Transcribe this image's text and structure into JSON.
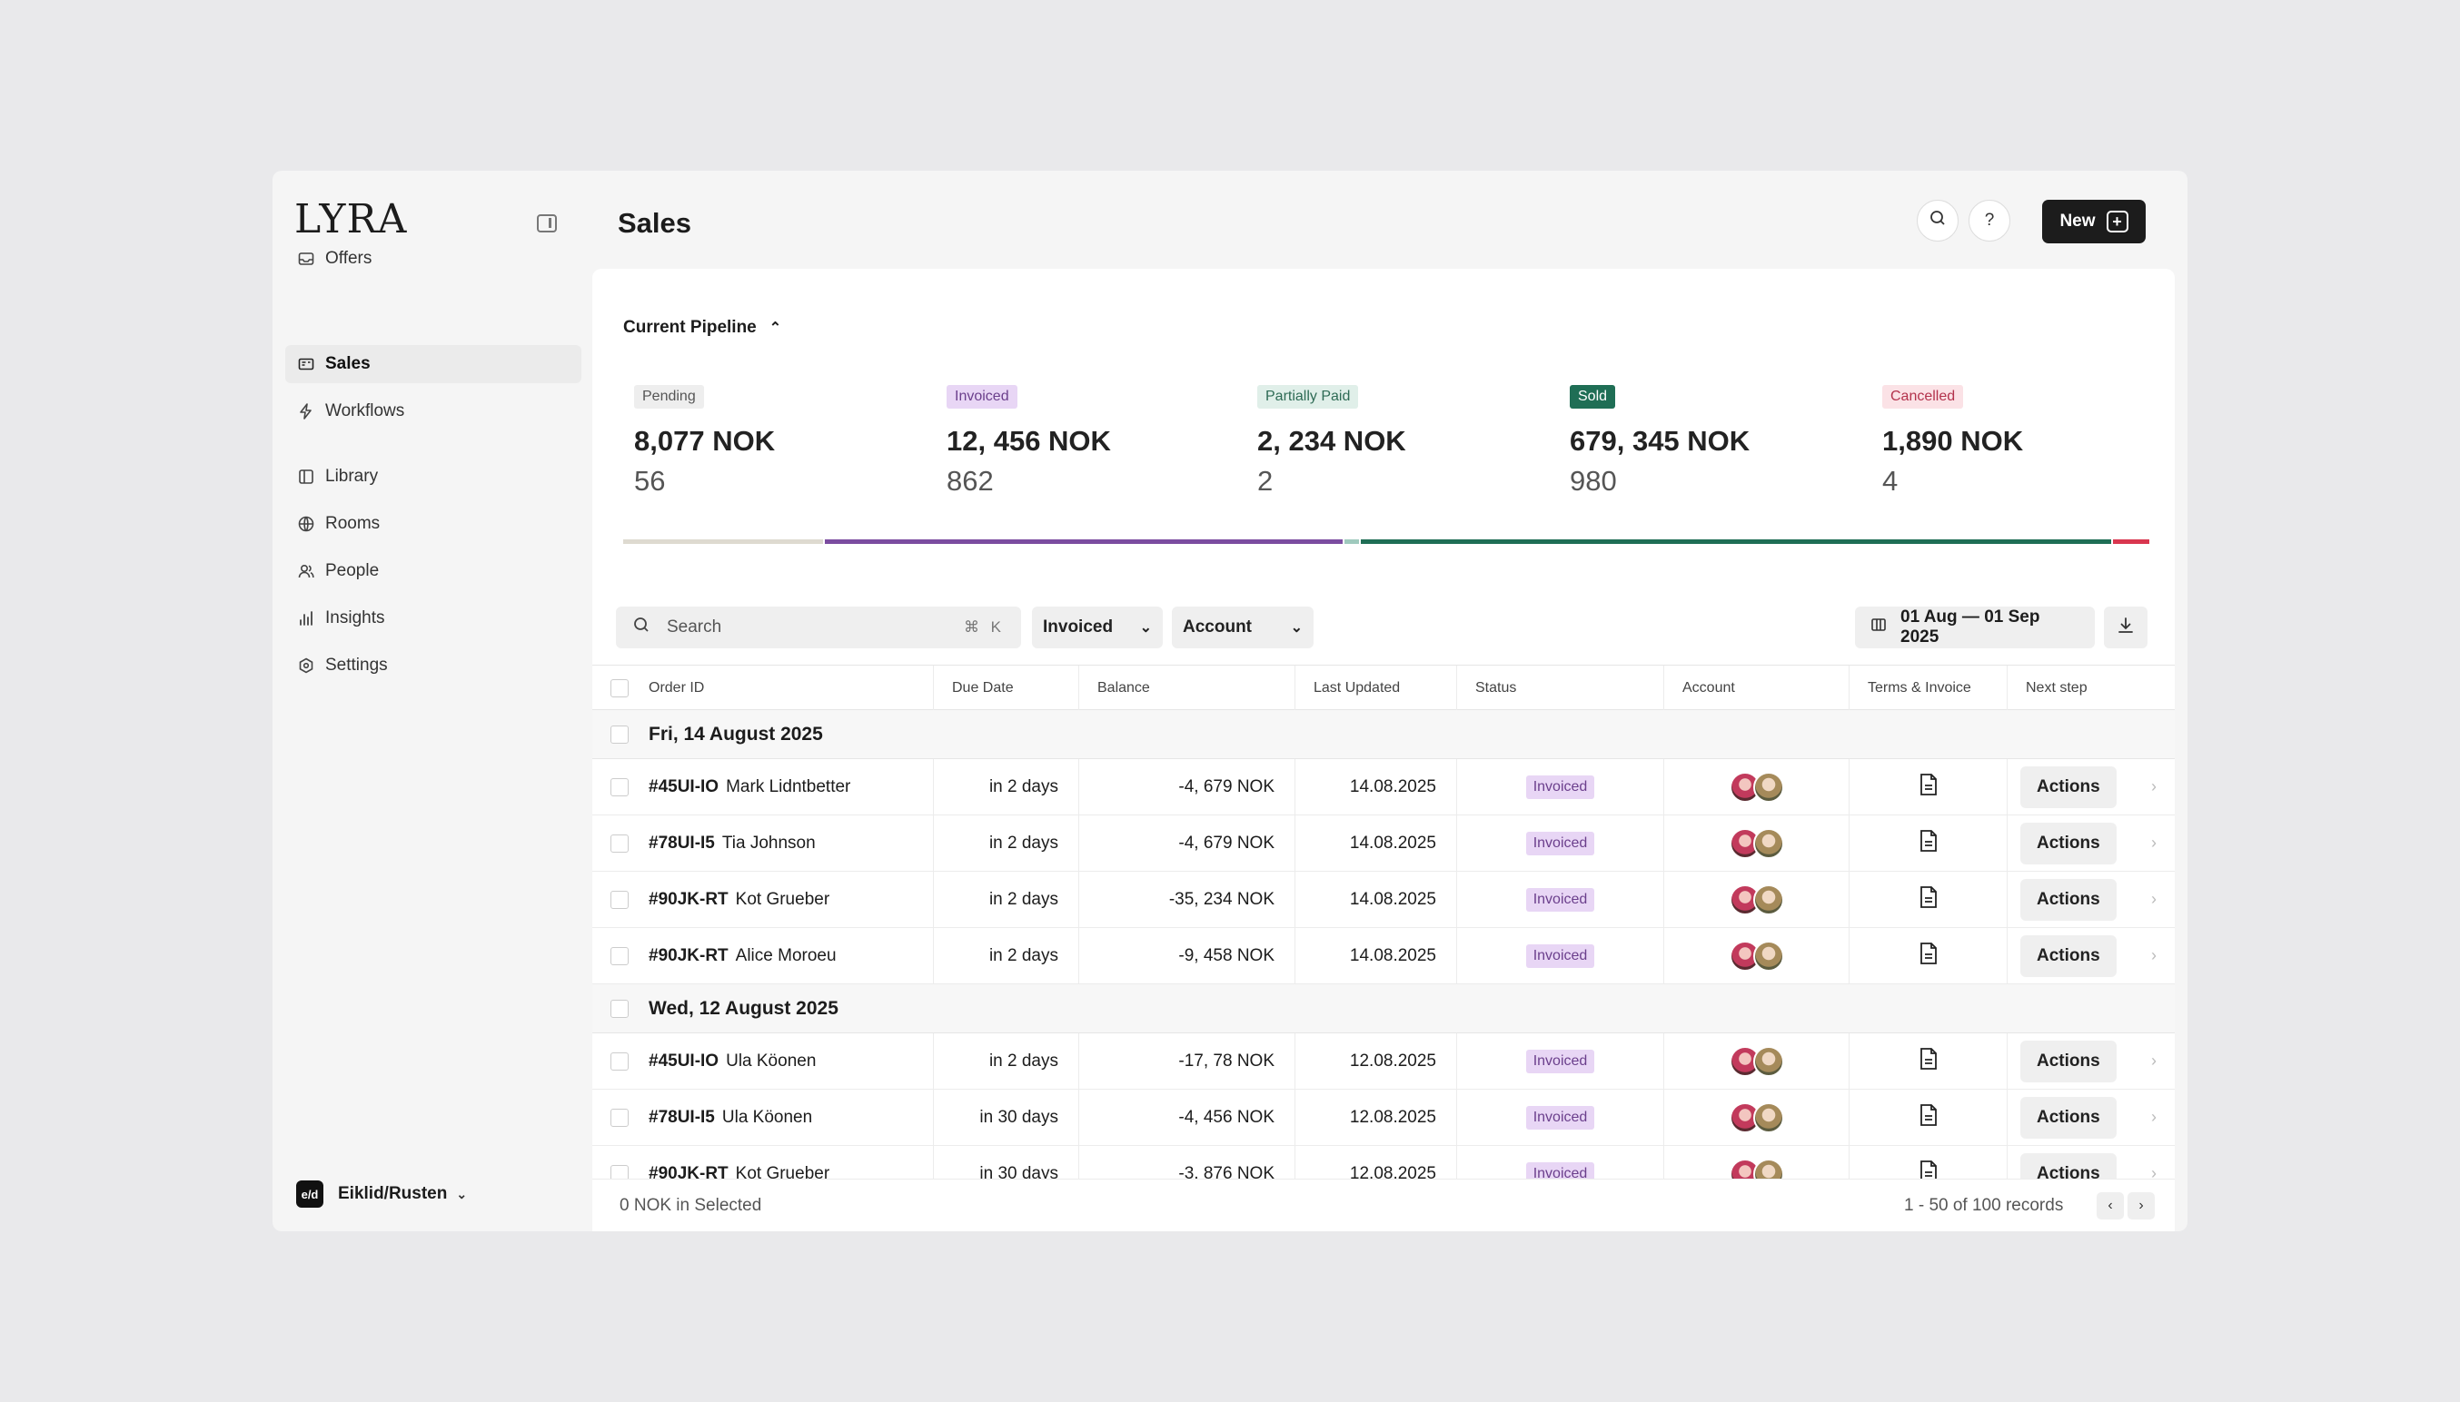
{
  "app": {
    "logo": "LYRA",
    "page_title": "Sales"
  },
  "sidebar": {
    "items": [
      {
        "label": "Offers",
        "icon": "inbox-icon"
      },
      {
        "label": "Sales",
        "icon": "receipt-icon",
        "active": true
      },
      {
        "label": "Workflows",
        "icon": "lightning-icon"
      },
      {
        "label": "Library",
        "icon": "book-icon"
      },
      {
        "label": "Rooms",
        "icon": "globe-icon"
      },
      {
        "label": "People",
        "icon": "people-icon"
      },
      {
        "label": "Insights",
        "icon": "chart-icon"
      },
      {
        "label": "Settings",
        "icon": "gear-icon"
      }
    ],
    "org": {
      "badge": "e/d",
      "name": "Eiklid/Rusten"
    }
  },
  "header": {
    "new_label": "New",
    "help_label": "?"
  },
  "pipeline": {
    "title": "Current Pipeline",
    "stages": [
      {
        "label": "Pending",
        "amount": "8,077 NOK",
        "count": "56",
        "badge_bg": "#eeeeee",
        "badge_fg": "#555555",
        "bar_color": "#dedad0"
      },
      {
        "label": "Invoiced",
        "amount": "12, 456 NOK",
        "count": "862",
        "badge_bg": "#e8d6f5",
        "badge_fg": "#6b3f8c",
        "bar_color": "#7b4ca0"
      },
      {
        "label": "Partially Paid",
        "amount": "2, 234 NOK",
        "count": "2",
        "badge_bg": "#e0efe9",
        "badge_fg": "#2e6b55",
        "bar_color": "#9fc9bd"
      },
      {
        "label": "Sold",
        "amount": "679, 345 NOK",
        "count": "980",
        "badge_bg": "#1f6e55",
        "badge_fg": "#ffffff",
        "bar_color": "#1f6e55"
      },
      {
        "label": "Cancelled",
        "amount": "1,890 NOK",
        "count": "4",
        "badge_bg": "#fbe2e6",
        "badge_fg": "#b3324c",
        "bar_color": "#d9364f"
      }
    ]
  },
  "toolbar": {
    "search_placeholder": "Search",
    "search_shortcut": "⌘ K",
    "filter_status": "Invoiced",
    "filter_account": "Account",
    "date_range": "01 Aug — 01 Sep 2025"
  },
  "table": {
    "columns": [
      "Order ID",
      "Due Date",
      "Balance",
      "Last Updated",
      "Status",
      "Account",
      "Terms & Invoice",
      "Next step"
    ],
    "groups": [
      {
        "date": "Fri, 14 August 2025",
        "rows": [
          {
            "id": "#45UI-IO",
            "name": "Mark Lidntbetter",
            "due": "in 2 days",
            "balance": "-4, 679 NOK",
            "updated": "14.08.2025",
            "status": "Invoiced",
            "action": "Actions"
          },
          {
            "id": "#78UI-I5",
            "name": "Tia Johnson",
            "due": "in 2 days",
            "balance": "-4, 679 NOK",
            "updated": "14.08.2025",
            "status": "Invoiced",
            "action": "Actions"
          },
          {
            "id": "#90JK-RT",
            "name": "Kot Grueber",
            "due": "in 2 days",
            "balance": "-35, 234 NOK",
            "updated": "14.08.2025",
            "status": "Invoiced",
            "action": "Actions"
          },
          {
            "id": "#90JK-RT",
            "name": "Alice Moroeu",
            "due": "in 2 days",
            "balance": "-9, 458 NOK",
            "updated": "14.08.2025",
            "status": "Invoiced",
            "action": "Actions"
          }
        ]
      },
      {
        "date": "Wed, 12 August 2025",
        "rows": [
          {
            "id": "#45UI-IO",
            "name": "Ula Köonen",
            "due": "in 2 days",
            "balance": "-17, 78 NOK",
            "updated": "12.08.2025",
            "status": "Invoiced",
            "action": "Actions"
          },
          {
            "id": "#78UI-I5",
            "name": "Ula Köonen",
            "due": "in 30 days",
            "balance": "-4, 456 NOK",
            "updated": "12.08.2025",
            "status": "Invoiced",
            "action": "Actions"
          },
          {
            "id": "#90JK-RT",
            "name": "Kot Grueber",
            "due": "in 30 days",
            "balance": "-3, 876 NOK",
            "updated": "12.08.2025",
            "status": "Invoiced",
            "action": "Actions"
          }
        ]
      }
    ]
  },
  "footer": {
    "selected": "0 NOK in Selected",
    "records": "1 - 50 of 100 records"
  }
}
